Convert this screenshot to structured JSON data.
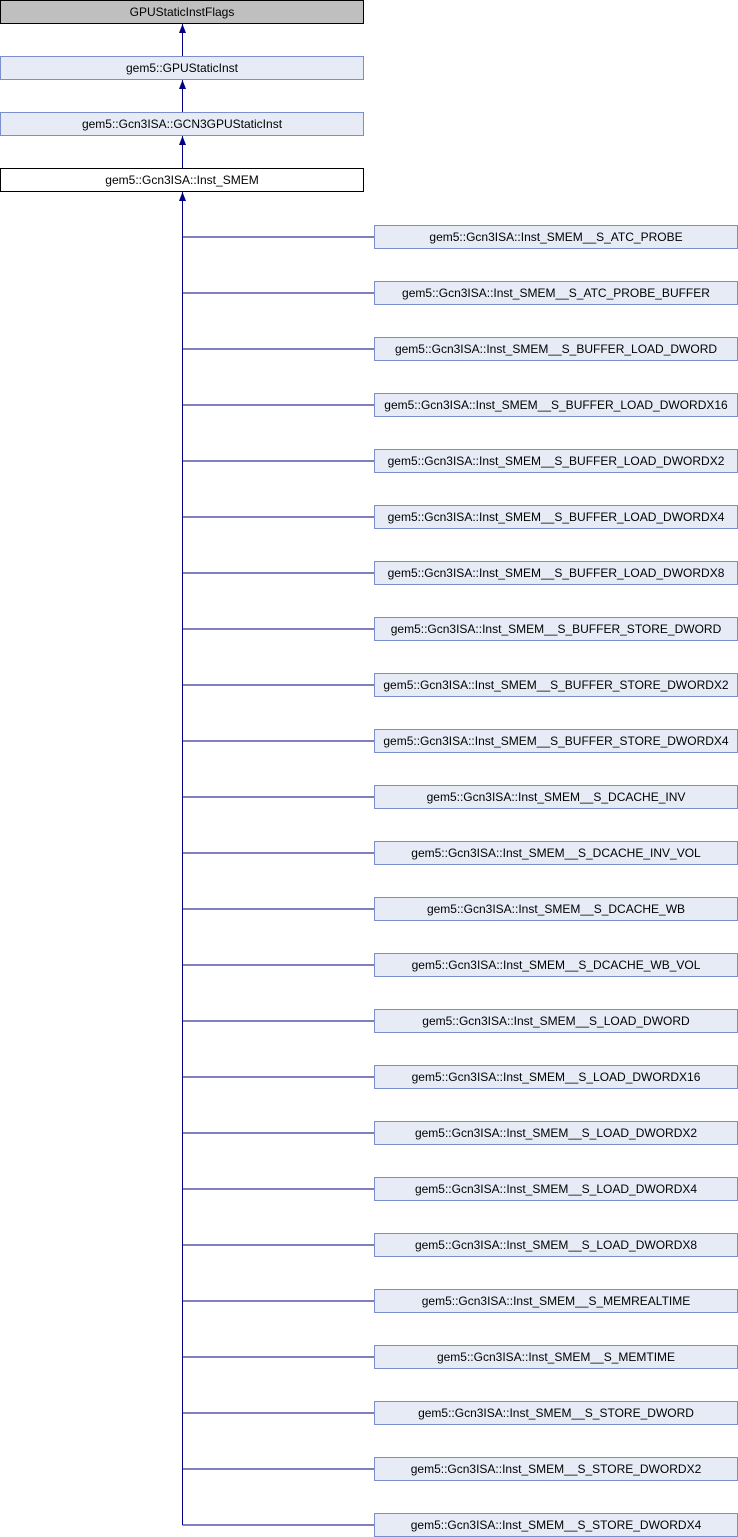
{
  "ancestors": [
    {
      "label": "GPUStaticInstFlags",
      "style": "root"
    },
    {
      "label": "gem5::GPUStaticInst",
      "style": "base"
    },
    {
      "label": "gem5::Gcn3ISA::GCN3GPUStaticInst",
      "style": "base"
    },
    {
      "label": "gem5::Gcn3ISA::Inst_SMEM",
      "style": "current"
    }
  ],
  "children": [
    "gem5::Gcn3ISA::Inst_SMEM__S_ATC_PROBE",
    "gem5::Gcn3ISA::Inst_SMEM__S_ATC_PROBE_BUFFER",
    "gem5::Gcn3ISA::Inst_SMEM__S_BUFFER_LOAD_DWORD",
    "gem5::Gcn3ISA::Inst_SMEM__S_BUFFER_LOAD_DWORDX16",
    "gem5::Gcn3ISA::Inst_SMEM__S_BUFFER_LOAD_DWORDX2",
    "gem5::Gcn3ISA::Inst_SMEM__S_BUFFER_LOAD_DWORDX4",
    "gem5::Gcn3ISA::Inst_SMEM__S_BUFFER_LOAD_DWORDX8",
    "gem5::Gcn3ISA::Inst_SMEM__S_BUFFER_STORE_DWORD",
    "gem5::Gcn3ISA::Inst_SMEM__S_BUFFER_STORE_DWORDX2",
    "gem5::Gcn3ISA::Inst_SMEM__S_BUFFER_STORE_DWORDX4",
    "gem5::Gcn3ISA::Inst_SMEM__S_DCACHE_INV",
    "gem5::Gcn3ISA::Inst_SMEM__S_DCACHE_INV_VOL",
    "gem5::Gcn3ISA::Inst_SMEM__S_DCACHE_WB",
    "gem5::Gcn3ISA::Inst_SMEM__S_DCACHE_WB_VOL",
    "gem5::Gcn3ISA::Inst_SMEM__S_LOAD_DWORD",
    "gem5::Gcn3ISA::Inst_SMEM__S_LOAD_DWORDX16",
    "gem5::Gcn3ISA::Inst_SMEM__S_LOAD_DWORDX2",
    "gem5::Gcn3ISA::Inst_SMEM__S_LOAD_DWORDX4",
    "gem5::Gcn3ISA::Inst_SMEM__S_LOAD_DWORDX8",
    "gem5::Gcn3ISA::Inst_SMEM__S_MEMREALTIME",
    "gem5::Gcn3ISA::Inst_SMEM__S_MEMTIME",
    "gem5::Gcn3ISA::Inst_SMEM__S_STORE_DWORD",
    "gem5::Gcn3ISA::Inst_SMEM__S_STORE_DWORDX2",
    "gem5::Gcn3ISA::Inst_SMEM__S_STORE_DWORDX4"
  ],
  "colors": {
    "edge": "#000080",
    "node_fill": "#e6ebf5",
    "node_border": "#7b8fce",
    "root_fill": "#bfbfbf"
  }
}
